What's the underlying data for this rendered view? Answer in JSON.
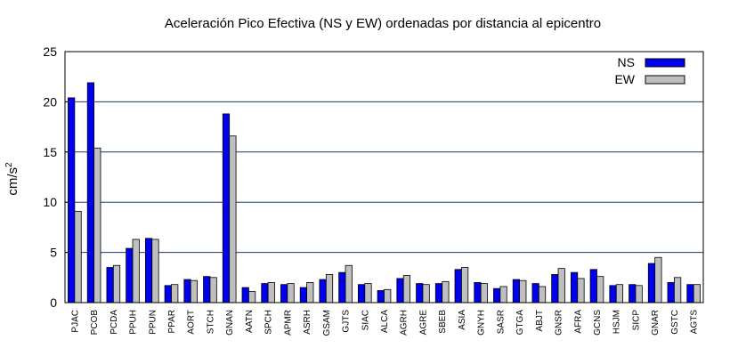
{
  "chart_data": {
    "type": "bar",
    "title": "Aceleración Pico Efectiva (NS y EW) ordenadas por distancia al epicentro",
    "xlabel": "",
    "ylabel": "cm/s",
    "ylabel_superscript": "2",
    "ylim": [
      0,
      25
    ],
    "yticks": [
      0,
      5,
      10,
      15,
      20,
      25
    ],
    "grid": "y-major",
    "legend_position": "top-right",
    "categories": [
      "PJAC",
      "PCOB",
      "PCDA",
      "PPUH",
      "PPUN",
      "PPAR",
      "AORT",
      "STCH",
      "GNAN",
      "AATN",
      "SPCH",
      "APMR",
      "ASRH",
      "GSAM",
      "GJTS",
      "SIAC",
      "ALCA",
      "AGRH",
      "AGRE",
      "SBEB",
      "ASIA",
      "GNYH",
      "SASR",
      "GTGA",
      "ABJT",
      "GNSR",
      "AFRA",
      "GCNS",
      "HSJM",
      "SICP",
      "GNAR",
      "GSTC",
      "AGTS"
    ],
    "series": [
      {
        "name": "NS",
        "color": "#0000ee",
        "values": [
          20.4,
          21.9,
          3.5,
          5.4,
          6.4,
          1.7,
          2.3,
          2.6,
          18.8,
          1.5,
          1.9,
          1.8,
          1.5,
          2.3,
          3.0,
          1.8,
          1.2,
          2.4,
          1.9,
          1.9,
          3.3,
          2.0,
          1.4,
          2.3,
          1.9,
          2.8,
          3.0,
          3.3,
          1.7,
          1.8,
          3.9,
          2.0,
          1.8
        ]
      },
      {
        "name": "EW",
        "color": "#bfbfbf",
        "values": [
          9.1,
          15.4,
          3.7,
          6.3,
          6.3,
          1.8,
          2.2,
          2.5,
          16.6,
          1.1,
          2.0,
          1.9,
          2.0,
          2.8,
          3.7,
          1.9,
          1.3,
          2.7,
          1.8,
          2.1,
          3.5,
          1.9,
          1.6,
          2.2,
          1.6,
          3.4,
          2.4,
          2.6,
          1.8,
          1.7,
          4.5,
          2.5,
          1.8
        ]
      }
    ]
  }
}
